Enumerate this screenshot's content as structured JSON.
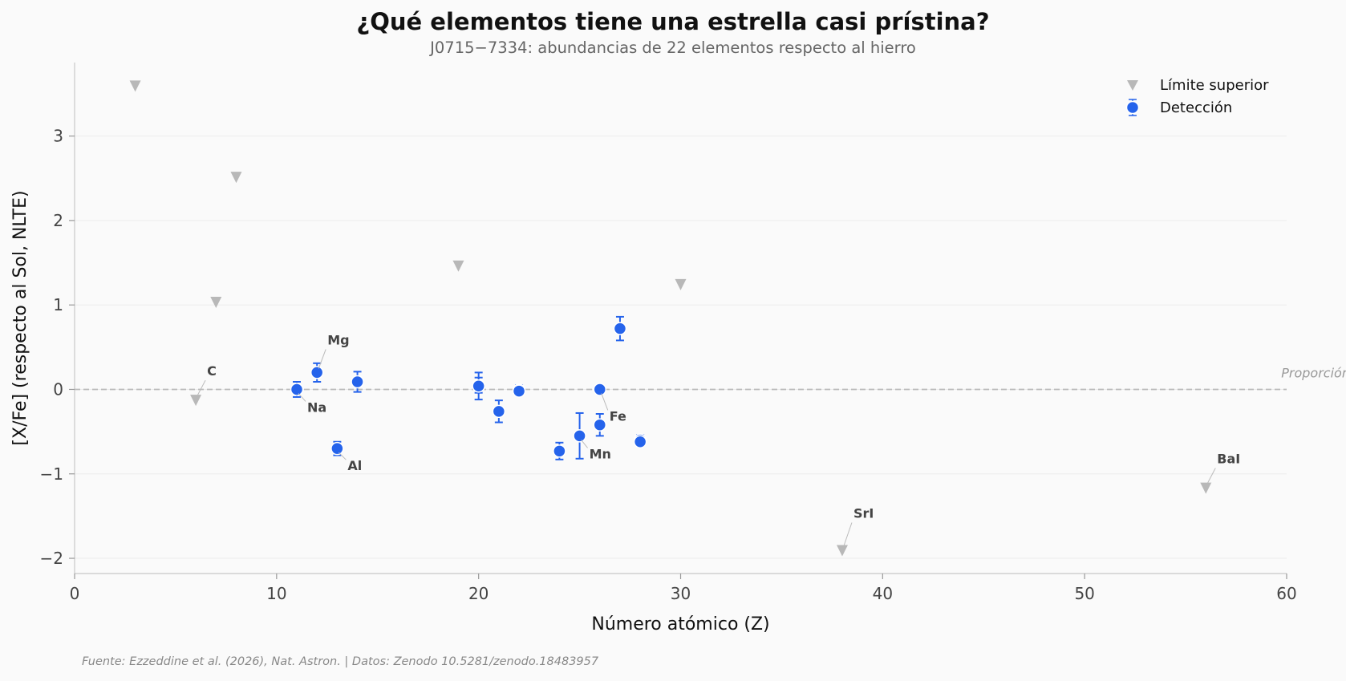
{
  "title": "¿Qué elementos tiene una estrella casi prístina?",
  "subtitle": "J0715−7334: abundancias de 22 elementos respecto al hierro",
  "source": "Fuente: Ezzeddine et al. (2026), Nat. Astron. | Datos: Zenodo 10.5281/zenodo.18483957",
  "colors": {
    "detection": "#2563eb",
    "upper_limit": "#b8b8b8",
    "reference": "#bbbbbb",
    "annotation": "#444444"
  },
  "chart_data": {
    "type": "scatter",
    "xlabel": "Número atómico (Z)",
    "ylabel": "[X/Fe] (respecto al Sol, NLTE)",
    "xlim": [
      0,
      60
    ],
    "ylim": [
      -2.18,
      3.87
    ],
    "x_ticks": [
      0,
      10,
      20,
      30,
      40,
      50,
      60
    ],
    "x_tick_labels": [
      "0",
      "10",
      "20",
      "30",
      "40",
      "50",
      "60"
    ],
    "y_ticks": [
      -2,
      -1,
      0,
      1,
      2,
      3
    ],
    "y_tick_labels": [
      "−2",
      "−1",
      "0",
      "1",
      "2",
      "3"
    ],
    "grid": "horizontal",
    "legend_position": "top-right",
    "reference_line": {
      "y": 0,
      "label": "Proporción solar"
    },
    "series": [
      {
        "name": "Límite superior",
        "marker": "triangle-down",
        "points": [
          {
            "z": 3,
            "y": 3.6
          },
          {
            "z": 6,
            "y": -0.12,
            "label": "C"
          },
          {
            "z": 7,
            "y": 1.04
          },
          {
            "z": 8,
            "y": 2.52
          },
          {
            "z": 19,
            "y": 1.47
          },
          {
            "z": 30,
            "y": 1.25
          },
          {
            "z": 38,
            "y": -1.9,
            "label": "SrI"
          },
          {
            "z": 56,
            "y": -1.16,
            "label": "BaI"
          }
        ]
      },
      {
        "name": "Detección",
        "marker": "circle",
        "points": [
          {
            "z": 11,
            "y": 0.0,
            "err": 0.09,
            "label": "Na"
          },
          {
            "z": 12,
            "y": 0.2,
            "err": 0.11,
            "label": "Mg"
          },
          {
            "z": 13,
            "y": -0.7,
            "err": 0.08,
            "label": "Al"
          },
          {
            "z": 14,
            "y": 0.09,
            "err": 0.12
          },
          {
            "z": 20,
            "y": 0.05,
            "err": 0.09
          },
          {
            "z": 20,
            "y": 0.04,
            "err": 0.16
          },
          {
            "z": 21,
            "y": -0.26,
            "err": 0.13
          },
          {
            "z": 22,
            "y": -0.01,
            "err": 0.06
          },
          {
            "z": 22,
            "y": -0.02,
            "err": 0.04
          },
          {
            "z": 24,
            "y": -0.73,
            "err": 0.1
          },
          {
            "z": 25,
            "y": -0.55,
            "err": 0.27,
            "label": "Mn"
          },
          {
            "z": 26,
            "y": 0.0,
            "err": 0.0,
            "label": "Fe"
          },
          {
            "z": 26,
            "y": -0.42,
            "err": 0.13
          },
          {
            "z": 27,
            "y": 0.72,
            "err": 0.14
          },
          {
            "z": 28,
            "y": -0.6,
            "err": 0.06
          },
          {
            "z": 28,
            "y": -0.62,
            "err": 0.05
          }
        ]
      }
    ]
  }
}
